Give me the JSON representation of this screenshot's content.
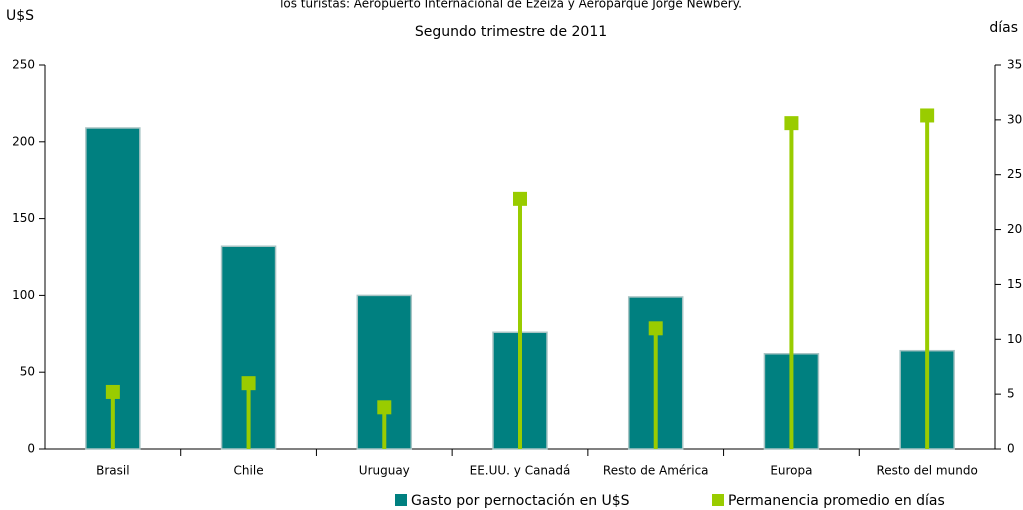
{
  "chart_data": {
    "type": "combo",
    "title": "los turistas: Aeropuerto Internacional de Ezeiza y Aeroparque Jorge Newbery.",
    "subtitle": "Segundo trimestre de 2011",
    "y_label": "U$S",
    "y2_label": "días",
    "categories": [
      "Brasil",
      "Chile",
      "Uruguay",
      "EE.UU. y Canadá",
      "Resto de América",
      "Europa",
      "Resto del mundo"
    ],
    "series": [
      {
        "name": "Gasto por pernoctación en U$S",
        "type": "bar",
        "color": "#008080",
        "values": [
          209,
          132,
          100,
          76,
          99,
          62,
          64
        ]
      },
      {
        "name": "Permanencia promedio en días",
        "type": "stem",
        "axis": "y2",
        "color": "#99cc00",
        "values": [
          5.2,
          6,
          3.8,
          22.8,
          11,
          29.7,
          30.4
        ]
      }
    ],
    "ylim": [
      0,
      250
    ],
    "yticks": [
      0,
      50,
      100,
      150,
      200,
      250
    ],
    "y2lim": [
      0,
      35
    ],
    "y2ticks": [
      0,
      5,
      10,
      15,
      20,
      25,
      30,
      35
    ],
    "grid": false
  }
}
